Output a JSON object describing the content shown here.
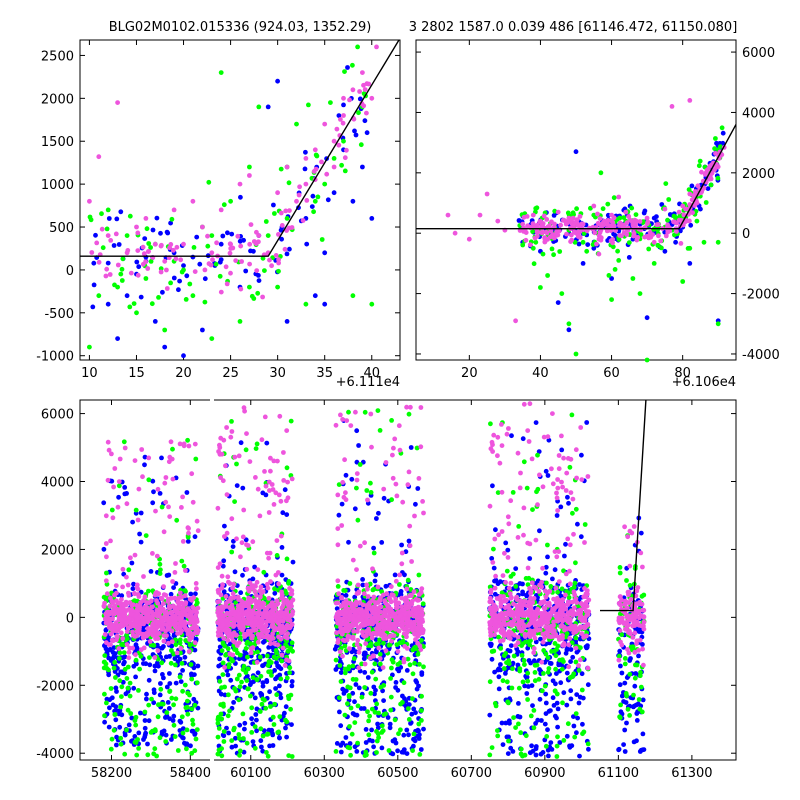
{
  "colors": {
    "blue": "#0000ff",
    "green": "#00ff00",
    "magenta": "#ee55dd",
    "model_line": "#000000"
  },
  "chart_data": [
    {
      "type": "scatter",
      "panel": "top-left",
      "title": "BLG02M0102.015336 (924.03, 1352.29)",
      "xlim": [
        9,
        43
      ],
      "ylim": [
        -1050,
        2680
      ],
      "x_offset_label": "+6.111e4",
      "xticks": [
        "10",
        "15",
        "20",
        "25",
        "30",
        "35",
        "40"
      ],
      "yticks": [
        "-1000",
        "-500",
        "0",
        "500",
        "1000",
        "1500",
        "2000",
        "2500"
      ],
      "ytick_side": "left",
      "model_line": {
        "x": [
          9,
          29,
          43
        ],
        "y": [
          160,
          160,
          2700
        ]
      },
      "series": [
        {
          "color": "blue",
          "points": [
            [
              12,
              -400
            ],
            [
              13,
              -800
            ],
            [
              14,
              -300
            ],
            [
              15,
              -50
            ],
            [
              16,
              100
            ],
            [
              17,
              -600
            ],
            [
              18,
              -900
            ],
            [
              19,
              200
            ],
            [
              20,
              -1000
            ],
            [
              21,
              150
            ],
            [
              22,
              -700
            ],
            [
              24,
              300
            ],
            [
              26,
              -200
            ],
            [
              28,
              400
            ],
            [
              31,
              -600
            ],
            [
              33,
              600
            ],
            [
              34,
              -300
            ],
            [
              35,
              200
            ],
            [
              36,
              900
            ],
            [
              37,
              1400
            ],
            [
              38,
              800
            ],
            [
              39,
              1200
            ],
            [
              39.5,
              1600
            ],
            [
              40,
              600
            ],
            [
              12,
              80
            ],
            [
              16,
              150
            ],
            [
              20,
              50
            ],
            [
              24,
              120
            ],
            [
              29,
              1900
            ],
            [
              30,
              2200
            ],
            [
              35,
              -400
            ]
          ]
        },
        {
          "color": "green",
          "points": [
            [
              10,
              -900
            ],
            [
              11,
              -300
            ],
            [
              12,
              700
            ],
            [
              13,
              -200
            ],
            [
              14,
              400
            ],
            [
              15,
              -500
            ],
            [
              16,
              -100
            ],
            [
              17,
              300
            ],
            [
              18,
              -700
            ],
            [
              19,
              100
            ],
            [
              20,
              0
            ],
            [
              21,
              -300
            ],
            [
              22,
              500
            ],
            [
              23,
              -800
            ],
            [
              24,
              2300
            ],
            [
              25,
              800
            ],
            [
              26,
              -600
            ],
            [
              27,
              1200
            ],
            [
              28,
              1900
            ],
            [
              29,
              400
            ],
            [
              30,
              -200
            ],
            [
              31,
              600
            ],
            [
              32,
              1700
            ],
            [
              33,
              -400
            ],
            [
              34,
              800
            ],
            [
              35,
              1000
            ],
            [
              36,
              1300
            ],
            [
              37,
              1500
            ],
            [
              38,
              -300
            ],
            [
              38.5,
              2600
            ],
            [
              39,
              1900
            ],
            [
              40,
              -400
            ],
            [
              23,
              400
            ],
            [
              27,
              -200
            ],
            [
              31,
              1200
            ]
          ]
        },
        {
          "color": "magenta",
          "points": [
            [
              10,
              800
            ],
            [
              11,
              1320
            ],
            [
              12,
              400
            ],
            [
              13,
              1950
            ],
            [
              14,
              200
            ],
            [
              15,
              500
            ],
            [
              16,
              600
            ],
            [
              17,
              300
            ],
            [
              18,
              100
            ],
            [
              19,
              700
            ],
            [
              20,
              300
            ],
            [
              21,
              800
            ],
            [
              22,
              500
            ],
            [
              23,
              200
            ],
            [
              24,
              700
            ],
            [
              25,
              300
            ],
            [
              26,
              1000
            ],
            [
              27,
              1100
            ],
            [
              28,
              400
            ],
            [
              29,
              200
            ],
            [
              30,
              900
            ],
            [
              31,
              1200
            ],
            [
              32,
              800
            ],
            [
              33,
              1000
            ],
            [
              34,
              1400
            ],
            [
              35,
              1700
            ],
            [
              36,
              1200
            ],
            [
              37,
              1800
            ],
            [
              38,
              2100
            ],
            [
              39,
              2300
            ],
            [
              40,
              2000
            ],
            [
              40.5,
              2600
            ],
            [
              33,
              1300
            ],
            [
              36,
              1500
            ],
            [
              37,
              2000
            ]
          ]
        }
      ]
    },
    {
      "type": "scatter",
      "panel": "top-right",
      "title": "3 2802 1587.0 0.039 486 [61146.472, 61150.080]",
      "xlim": [
        5,
        95
      ],
      "ylim": [
        -4200,
        6400
      ],
      "x_offset_label": "+6.106e4",
      "xticks": [
        "20",
        "40",
        "60",
        "80"
      ],
      "yticks": [
        "-4000",
        "-2000",
        "0",
        "2000",
        "4000",
        "6000"
      ],
      "ytick_side": "right",
      "model_line": {
        "x": [
          5,
          79,
          95
        ],
        "y": [
          150,
          150,
          3600
        ]
      },
      "series": [
        {
          "color": "blue",
          "points": [
            [
              35,
              -300
            ],
            [
              40,
              -600
            ],
            [
              45,
              -2300
            ],
            [
              48,
              -3200
            ],
            [
              50,
              2700
            ],
            [
              52,
              -1000
            ],
            [
              55,
              -500
            ],
            [
              58,
              200
            ],
            [
              60,
              -1500
            ],
            [
              62,
              100
            ],
            [
              65,
              -800
            ],
            [
              68,
              300
            ],
            [
              70,
              -2800
            ],
            [
              72,
              500
            ],
            [
              75,
              -600
            ],
            [
              78,
              -300
            ],
            [
              80,
              200
            ],
            [
              82,
              -1000
            ],
            [
              85,
              800
            ],
            [
              88,
              1600
            ],
            [
              90,
              2900
            ],
            [
              90,
              -2900
            ],
            [
              48,
              0
            ],
            [
              56,
              -400
            ],
            [
              66,
              -200
            ],
            [
              76,
              400
            ]
          ]
        },
        {
          "color": "green",
          "points": [
            [
              35,
              100
            ],
            [
              38,
              -500
            ],
            [
              40,
              -1800
            ],
            [
              42,
              -1400
            ],
            [
              44,
              200
            ],
            [
              46,
              -2000
            ],
            [
              48,
              -3000
            ],
            [
              50,
              -4000
            ],
            [
              52,
              -300
            ],
            [
              55,
              600
            ],
            [
              57,
              2000
            ],
            [
              60,
              -2200
            ],
            [
              62,
              -900
            ],
            [
              64,
              400
            ],
            [
              66,
              -1500
            ],
            [
              68,
              -2000
            ],
            [
              70,
              -4200
            ],
            [
              72,
              -1000
            ],
            [
              75,
              200
            ],
            [
              78,
              500
            ],
            [
              80,
              -1600
            ],
            [
              82,
              -500
            ],
            [
              84,
              400
            ],
            [
              86,
              -300
            ],
            [
              88,
              1600
            ],
            [
              90,
              -300
            ],
            [
              90,
              -3000
            ],
            [
              53,
              -600
            ],
            [
              61,
              -1200
            ],
            [
              73,
              -400
            ]
          ]
        },
        {
          "color": "magenta",
          "points": [
            [
              14,
              600
            ],
            [
              16,
              0
            ],
            [
              20,
              -200
            ],
            [
              23,
              600
            ],
            [
              25,
              1300
            ],
            [
              28,
              400
            ],
            [
              30,
              100
            ],
            [
              33,
              -2900
            ],
            [
              35,
              300
            ],
            [
              38,
              600
            ],
            [
              40,
              400
            ],
            [
              42,
              200
            ],
            [
              45,
              700
            ],
            [
              48,
              500
            ],
            [
              50,
              0
            ],
            [
              52,
              300
            ],
            [
              55,
              900
            ],
            [
              58,
              400
            ],
            [
              60,
              600
            ],
            [
              62,
              1200
            ],
            [
              64,
              700
            ],
            [
              66,
              300
            ],
            [
              70,
              500
            ],
            [
              72,
              -300
            ],
            [
              75,
              800
            ],
            [
              77,
              4200
            ],
            [
              80,
              900
            ],
            [
              82,
              4400
            ],
            [
              84,
              1300
            ],
            [
              86,
              1500
            ],
            [
              88,
              1800
            ],
            [
              90,
              2200
            ],
            [
              91,
              2600
            ],
            [
              37,
              200
            ],
            [
              47,
              400
            ],
            [
              57,
              100
            ],
            [
              67,
              400
            ],
            [
              79,
              700
            ]
          ]
        }
      ]
    },
    {
      "type": "scatter",
      "panel": "bottom",
      "xlim": [
        58120,
        61420
      ],
      "x_break": [
        58450,
        60000
      ],
      "ylim": [
        -4200,
        6400
      ],
      "xticks": [
        "58200",
        "58400",
        "60100",
        "60300",
        "60500",
        "60700",
        "60900",
        "61100",
        "61300"
      ],
      "yticks": [
        "-4000",
        "-2000",
        "0",
        "2000",
        "4000",
        "6000"
      ],
      "ytick_side": "left",
      "model_line": {
        "x": [
          61050,
          61140,
          61175
        ],
        "y": [
          200,
          200,
          6400
        ]
      },
      "seasons": [
        {
          "range": [
            58180,
            58420
          ],
          "blue_spread": [
            -3800,
            4800
          ],
          "green_spread": [
            -4100,
            5400
          ],
          "magenta_spread": [
            -1200,
            5200
          ]
        },
        {
          "range": [
            60010,
            60215
          ],
          "blue_spread": [
            -4000,
            5200
          ],
          "green_spread": [
            -4100,
            6300
          ],
          "magenta_spread": [
            -1500,
            6200
          ]
        },
        {
          "range": [
            60330,
            60570
          ],
          "blue_spread": [
            -4100,
            5800
          ],
          "green_spread": [
            -4100,
            6100
          ],
          "magenta_spread": [
            -1500,
            6300
          ]
        },
        {
          "range": [
            60750,
            61020
          ],
          "blue_spread": [
            -4100,
            6300
          ],
          "green_spread": [
            -4100,
            6300
          ],
          "magenta_spread": [
            -1500,
            6300
          ]
        },
        {
          "range": [
            61100,
            61170
          ],
          "blue_spread": [
            -4000,
            3000
          ],
          "green_spread": [
            -3000,
            2500
          ],
          "magenta_spread": [
            -1500,
            2800
          ]
        }
      ]
    }
  ]
}
